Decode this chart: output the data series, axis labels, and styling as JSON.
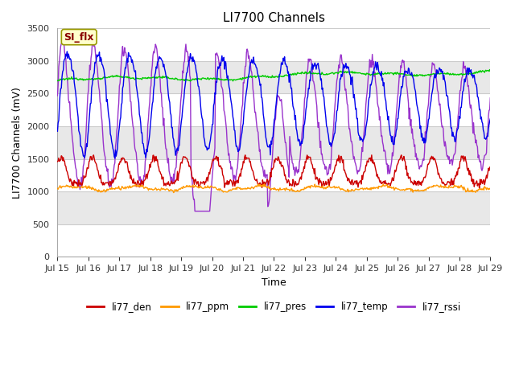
{
  "title": "LI7700 Channels",
  "xlabel": "Time",
  "ylabel": "LI7700 Channels (mV)",
  "ylim": [
    0,
    3500
  ],
  "yticks": [
    0,
    500,
    1000,
    1500,
    2000,
    2500,
    3000,
    3500
  ],
  "xtick_labels": [
    "Jul 15",
    "Jul 16",
    "Jul 17",
    "Jul 18",
    "Jul 19",
    "Jul 20",
    "Jul 21",
    "Jul 22",
    "Jul 23",
    "Jul 24",
    "Jul 25",
    "Jul 26",
    "Jul 27",
    "Jul 28",
    "Jul 29"
  ],
  "series_colors": {
    "li77_den": "#cc0000",
    "li77_ppm": "#ff9900",
    "li77_pres": "#00cc00",
    "li77_temp": "#0000ee",
    "li77_rssi": "#9933cc"
  },
  "annotation_text": "SI_flx",
  "annotation_box_facecolor": "#ffffcc",
  "annotation_text_color": "#880000",
  "annotation_edge_color": "#999900",
  "fig_facecolor": "#ffffff",
  "band_colors": [
    "#ffffff",
    "#e8e8e8"
  ],
  "line_width": 1.0
}
